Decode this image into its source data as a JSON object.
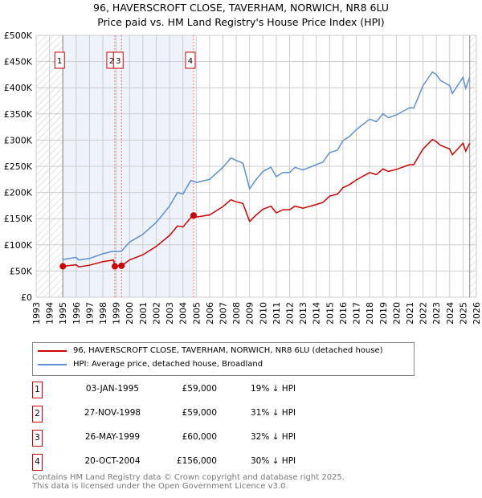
{
  "title": "96, HAVERSCROFT CLOSE, TAVERHAM, NORWICH, NR8 6LU",
  "subtitle": "Price paid vs. HM Land Registry's House Price Index (HPI)",
  "colors": {
    "property": "#cc0000",
    "hpi": "#5b8fd4",
    "shade": "#eef3fb"
  },
  "chart_data": {
    "type": "line",
    "xlim": [
      1993,
      2026
    ],
    "ylim": [
      0,
      500000
    ],
    "yticks": [
      0,
      50000,
      100000,
      150000,
      200000,
      250000,
      300000,
      350000,
      400000,
      450000,
      500000
    ],
    "ytick_labels": [
      "£0",
      "£50K",
      "£100K",
      "£150K",
      "£200K",
      "£250K",
      "£300K",
      "£350K",
      "£400K",
      "£450K",
      "£500K"
    ],
    "xticks": [
      1993,
      1994,
      1995,
      1996,
      1997,
      1998,
      1999,
      2000,
      2001,
      2002,
      2003,
      2004,
      2005,
      2006,
      2007,
      2008,
      2009,
      2010,
      2011,
      2012,
      2013,
      2014,
      2015,
      2016,
      2017,
      2018,
      2019,
      2020,
      2021,
      2022,
      2023,
      2024,
      2025,
      2026
    ],
    "grid": true,
    "hatched_ranges": [
      [
        1993,
        1995
      ],
      [
        2025.5,
        2026
      ]
    ],
    "shaded_range": [
      1995,
      2004.8
    ],
    "series": [
      {
        "name": "96, HAVERSCROFT CLOSE, TAVERHAM, NORWICH, NR8 6LU (detached house)",
        "color": "#cc0000",
        "x": [
          1995,
          1996,
          1996.2,
          1997,
          1998,
          1998.8,
          1998.9,
          1999.4,
          2000,
          2001,
          2002,
          2003,
          2003.6,
          2004,
          2004.6,
          2004.8,
          2005,
          2006,
          2007,
          2007.6,
          2008,
          2008.5,
          2009,
          2009.5,
          2010,
          2010.6,
          2011,
          2011.5,
          2012,
          2012.4,
          2013,
          2014,
          2014.5,
          2015,
          2015.6,
          2016,
          2016.5,
          2017,
          2018,
          2018.5,
          2019,
          2019.4,
          2020,
          2021,
          2021.3,
          2022,
          2022.7,
          2023,
          2023.3,
          2024,
          2024.2,
          2025,
          2025.2,
          2025.5
        ],
        "y": [
          59000,
          62000,
          58000,
          61000,
          68000,
          71000,
          59000,
          60000,
          71000,
          81000,
          97000,
          118000,
          136000,
          134000,
          152000,
          156000,
          153000,
          157000,
          173000,
          186000,
          182000,
          179000,
          145000,
          157000,
          168000,
          174000,
          161000,
          167000,
          167000,
          174000,
          170000,
          177000,
          181000,
          193000,
          197000,
          209000,
          215000,
          224000,
          238000,
          234000,
          245000,
          240000,
          244000,
          253000,
          253000,
          283000,
          301000,
          297000,
          290000,
          283000,
          272000,
          294000,
          279000,
          294000
        ]
      },
      {
        "name": "HPI: Average price, detached house, Broadland",
        "color": "#5b8fd4",
        "x": [
          1995,
          1996,
          1996.2,
          1997,
          1998,
          1998.8,
          1999,
          1999.4,
          2000,
          2001,
          2002,
          2003,
          2003.6,
          2004,
          2004.6,
          2004.8,
          2005,
          2006,
          2007,
          2007.6,
          2008,
          2008.5,
          2009,
          2009.5,
          2010,
          2010.6,
          2011,
          2011.5,
          2012,
          2012.4,
          2013,
          2014,
          2014.5,
          2015,
          2015.6,
          2016,
          2016.5,
          2017,
          2018,
          2018.5,
          2019,
          2019.4,
          2020,
          2021,
          2021.3,
          2022,
          2022.7,
          2023,
          2023.3,
          2024,
          2024.2,
          2025,
          2025.2,
          2025.5
        ],
        "y": [
          72000,
          76000,
          71000,
          74000,
          83000,
          88000,
          87000,
          88000,
          105000,
          120000,
          143000,
          174000,
          200000,
          197000,
          223000,
          221000,
          219000,
          225000,
          248000,
          266000,
          261000,
          256000,
          207000,
          225000,
          240000,
          248000,
          230000,
          238000,
          238000,
          248000,
          243000,
          253000,
          258000,
          276000,
          281000,
          299000,
          307000,
          320000,
          340000,
          335000,
          350000,
          343000,
          348000,
          362000,
          361000,
          404000,
          430000,
          425000,
          414000,
          404000,
          389000,
          420000,
          399000,
          420000
        ]
      }
    ],
    "sales": [
      {
        "label": "1",
        "x": 1995.0,
        "y": 59000
      },
      {
        "label": "2",
        "x": 1998.9,
        "y": 59000
      },
      {
        "label": "3",
        "x": 1999.4,
        "y": 60000
      },
      {
        "label": "4",
        "x": 2004.8,
        "y": 156000
      }
    ]
  },
  "transactions": [
    {
      "num": "1",
      "date": "03-JAN-1995",
      "price": "£59,000",
      "hpi": "19% ↓ HPI"
    },
    {
      "num": "2",
      "date": "27-NOV-1998",
      "price": "£59,000",
      "hpi": "31% ↓ HPI"
    },
    {
      "num": "3",
      "date": "26-MAY-1999",
      "price": "£60,000",
      "hpi": "32% ↓ HPI"
    },
    {
      "num": "4",
      "date": "20-OCT-2004",
      "price": "£156,000",
      "hpi": "30% ↓ HPI"
    }
  ],
  "footer": {
    "line1": "Contains HM Land Registry data © Crown copyright and database right 2025.",
    "line2": "This data is licensed under the Open Government Licence v3.0."
  }
}
